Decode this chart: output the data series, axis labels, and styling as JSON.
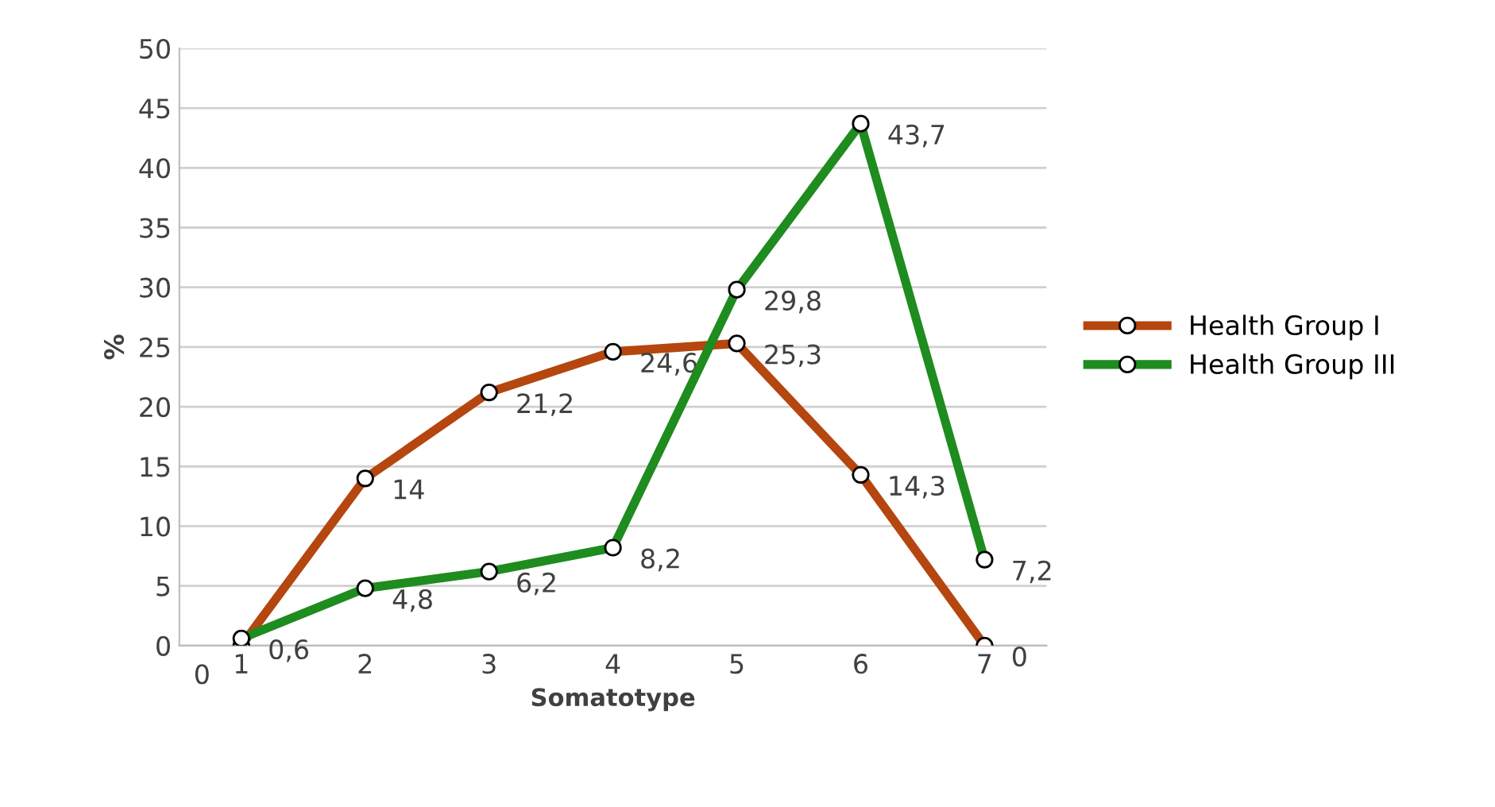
{
  "chart_data": {
    "type": "line",
    "xlabel": "Somatotype",
    "ylabel": "%",
    "categories": [
      "1",
      "2",
      "3",
      "4",
      "5",
      "6",
      "7"
    ],
    "series": [
      {
        "name": "Health Group I",
        "color": "#b5460f",
        "values": [
          0,
          14,
          21.2,
          24.6,
          25.3,
          14.3,
          0
        ],
        "value_labels": [
          "0",
          "14",
          "21,2",
          "24,6",
          "25,3",
          "14,3",
          "0"
        ]
      },
      {
        "name": "Health Group III",
        "color": "#1e8c1e",
        "values": [
          0.6,
          4.8,
          6.2,
          8.2,
          29.8,
          43.7,
          7.2
        ],
        "value_labels": [
          "0,6",
          "4,8",
          "6,2",
          "8,2",
          "29,8",
          "43,7",
          "7,2"
        ]
      }
    ],
    "ylim": [
      0,
      50
    ],
    "yticks": [
      0,
      5,
      10,
      15,
      20,
      25,
      30,
      35,
      40,
      45,
      50
    ],
    "grid": "y",
    "legend": "right",
    "marker": "circle",
    "line_style": "solid"
  }
}
